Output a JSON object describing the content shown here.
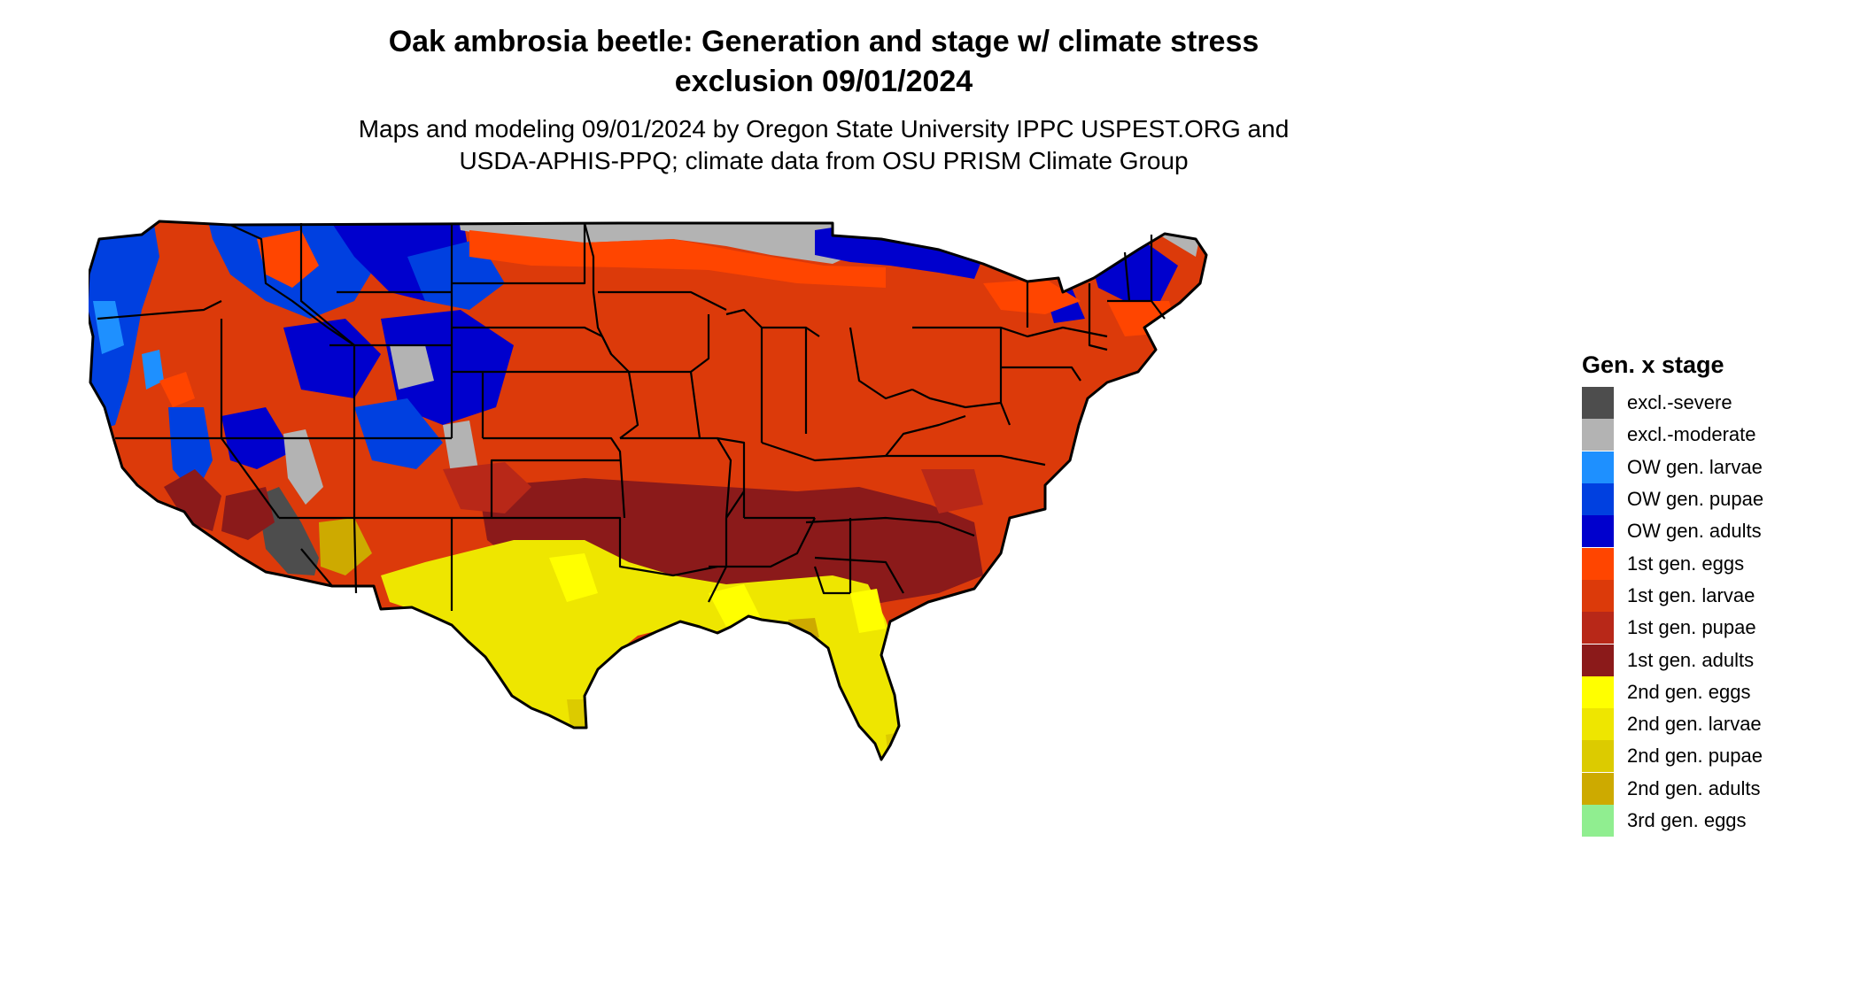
{
  "title": {
    "line1": "Oak ambrosia beetle: Generation and stage w/ climate stress",
    "line2": "exclusion 09/01/2024"
  },
  "subtitle": {
    "line1": "Maps and modeling 09/01/2024 by Oregon State University IPPC USPEST.ORG and",
    "line2": "USDA-APHIS-PPQ; climate data from OSU PRISM Climate Group"
  },
  "legend": {
    "title": "Gen. x stage",
    "items": [
      {
        "label": "excl.-severe",
        "color": "#4d4d4d"
      },
      {
        "label": "excl.-moderate",
        "color": "#b3b3b3"
      },
      {
        "label": "OW gen. larvae",
        "color": "#1e90ff"
      },
      {
        "label": "OW gen. pupae",
        "color": "#0040e0"
      },
      {
        "label": "OW gen. adults",
        "color": "#0000cd"
      },
      {
        "label": "1st gen. eggs",
        "color": "#ff4500"
      },
      {
        "label": "1st gen. larvae",
        "color": "#dc3a0a"
      },
      {
        "label": "1st gen. pupae",
        "color": "#b82818"
      },
      {
        "label": "1st gen. adults",
        "color": "#8b1a1a"
      },
      {
        "label": "2nd gen. eggs",
        "color": "#ffff00"
      },
      {
        "label": "2nd gen. larvae",
        "color": "#eee600"
      },
      {
        "label": "2nd gen. pupae",
        "color": "#dccb00"
      },
      {
        "label": "2nd gen. adults",
        "color": "#cdaa00"
      },
      {
        "label": "3rd gen. eggs",
        "color": "#90ee90"
      }
    ]
  },
  "map": {
    "region": "Contiguous United States",
    "boundary_color": "#000000"
  }
}
